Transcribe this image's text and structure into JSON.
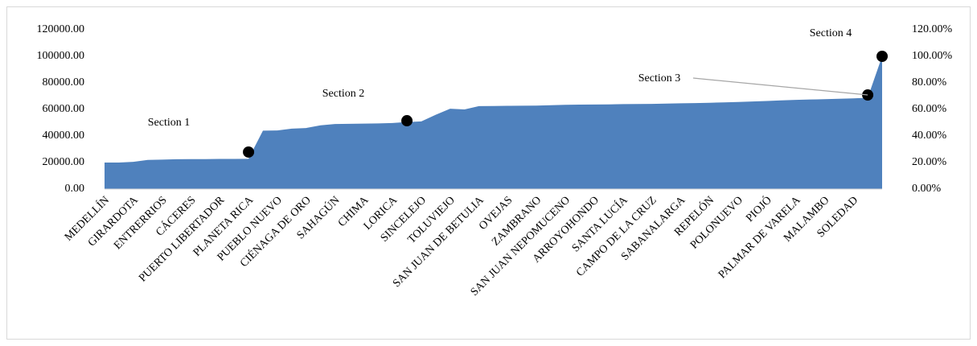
{
  "chart_data": {
    "type": "area",
    "categories": [
      "MEDELLÍN",
      null,
      "GIRARDOTA",
      null,
      "ENTRERRIOS",
      null,
      "CÁCERES",
      null,
      "PUERTO LIBERTADOR",
      null,
      "PLANETA RICA",
      null,
      "PUEBLO NUEVO",
      null,
      "CIÉNAGA DE ORO",
      null,
      "SAHAGÚN",
      null,
      "CHIMA",
      null,
      "LORICA",
      null,
      "SINCELEJO",
      null,
      "TOLUVIEJO",
      null,
      "SAN JUAN DE BETULIA",
      null,
      "OVEJAS",
      null,
      "ZAMBRANO",
      null,
      "SAN JUAN NEPOMUCENO",
      null,
      "ARROYOHONDO",
      null,
      "SANTA LUCÍA",
      null,
      "CAMPO DE LA CRUZ",
      null,
      "SABANALARGA",
      null,
      "REPELÓN",
      null,
      "POLONUEVO",
      null,
      "PIOJÓ",
      null,
      "PALMAR DE VARELA",
      null,
      "MALAMBO",
      null,
      "SOLEDAD",
      null,
      null
    ],
    "series": [
      {
        "color": "#4f81bd",
        "values": [
          20000,
          20000,
          20500,
          22000,
          22200,
          22500,
          22600,
          22600,
          22700,
          22700,
          22800,
          44000,
          44200,
          45500,
          46000,
          48000,
          49000,
          49200,
          49300,
          49500,
          49800,
          50500,
          51000,
          56000,
          60500,
          60000,
          62500,
          62600,
          62700,
          62800,
          62900,
          63200,
          63500,
          63600,
          63700,
          63800,
          64000,
          64100,
          64200,
          64400,
          64600,
          64800,
          65000,
          65300,
          65600,
          66000,
          66400,
          66800,
          67200,
          67500,
          67700,
          68000,
          68300,
          68800,
          100000
        ]
      },
      {
        "color": "#000000",
        "axis": "y2",
        "marker": "circle",
        "values": [
          null,
          null,
          null,
          null,
          null,
          null,
          null,
          null,
          null,
          null,
          27.9,
          null,
          null,
          null,
          null,
          null,
          null,
          null,
          null,
          null,
          null,
          51.5,
          null,
          null,
          null,
          null,
          null,
          null,
          null,
          null,
          null,
          null,
          null,
          null,
          null,
          null,
          null,
          null,
          null,
          null,
          null,
          null,
          null,
          null,
          null,
          null,
          null,
          null,
          null,
          null,
          null,
          null,
          null,
          70.9,
          100
        ]
      }
    ],
    "annotations": [
      "Section 1",
      "Section 2",
      "Section 3",
      "Section 4"
    ],
    "ylim": [
      0,
      120000
    ],
    "yticks": [
      {
        "value": 0,
        "label": "0.00"
      },
      {
        "value": 20000,
        "label": "20000.00"
      },
      {
        "value": 40000,
        "label": "40000.00"
      },
      {
        "value": 60000,
        "label": "60000.00"
      },
      {
        "value": 80000,
        "label": "80000.00"
      },
      {
        "value": 100000,
        "label": "100000.00"
      },
      {
        "value": 120000,
        "label": "120000.00"
      }
    ],
    "y2lim": [
      0,
      120
    ],
    "y2ticks": [
      {
        "value": 0,
        "label": "0.00%"
      },
      {
        "value": 20,
        "label": "20.00%"
      },
      {
        "value": 40,
        "label": "40.00%"
      },
      {
        "value": 60,
        "label": "60.00%"
      },
      {
        "value": 80,
        "label": "80.00%"
      },
      {
        "value": 100,
        "label": "100.00%"
      },
      {
        "value": 120,
        "label": "120.00%"
      }
    ],
    "grid": false
  }
}
